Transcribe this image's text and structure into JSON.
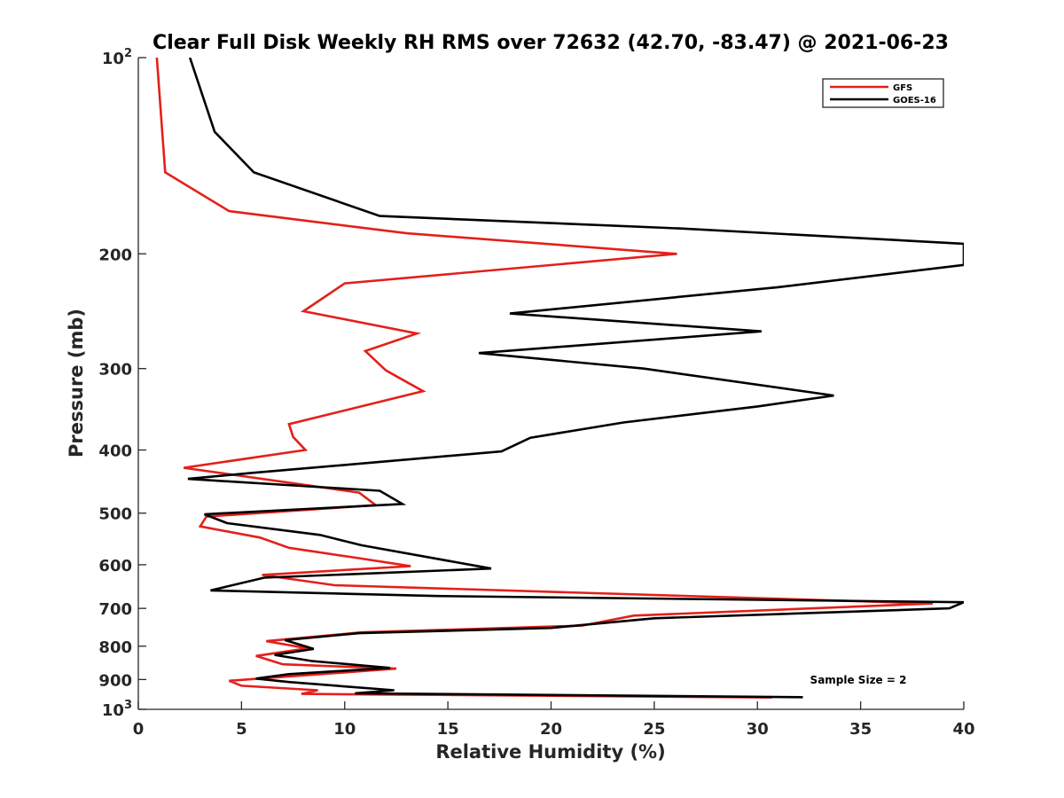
{
  "chart_data": {
    "type": "line",
    "title": "Clear Full Disk Weekly RH RMS over 72632 (42.70, -83.47) @ 2021-06-23",
    "xlabel": "Relative Humidity (%)",
    "ylabel": "Pressure (mb)",
    "xlim": [
      0,
      40
    ],
    "ylim": [
      100,
      1000
    ],
    "y_scale": "log",
    "y_reversed": true,
    "x_ticks": [
      0,
      5,
      10,
      15,
      20,
      25,
      30,
      35,
      40
    ],
    "y_ticks": [
      {
        "value": 100,
        "label": "10",
        "sup": "2"
      },
      {
        "value": 200,
        "label": "200",
        "sup": ""
      },
      {
        "value": 300,
        "label": "300",
        "sup": ""
      },
      {
        "value": 400,
        "label": "400",
        "sup": ""
      },
      {
        "value": 500,
        "label": "500",
        "sup": ""
      },
      {
        "value": 600,
        "label": "600",
        "sup": ""
      },
      {
        "value": 700,
        "label": "700",
        "sup": ""
      },
      {
        "value": 800,
        "label": "800",
        "sup": ""
      },
      {
        "value": 900,
        "label": "900",
        "sup": ""
      },
      {
        "value": 1000,
        "label": "10",
        "sup": "3"
      }
    ],
    "grid": false,
    "legend_position": "top-right",
    "annotation": "Sample Size = 2",
    "series": [
      {
        "name": "GFS",
        "color": "#e3201b",
        "points": [
          [
            0.9,
            100
          ],
          [
            1.3,
            150
          ],
          [
            4.4,
            172
          ],
          [
            13.0,
            186
          ],
          [
            26.1,
            200
          ],
          [
            10.0,
            222
          ],
          [
            8.0,
            245
          ],
          [
            13.5,
            265
          ],
          [
            11.0,
            282
          ],
          [
            12.0,
            302
          ],
          [
            13.8,
            325
          ],
          [
            7.3,
            365
          ],
          [
            7.5,
            382
          ],
          [
            8.1,
            400
          ],
          [
            2.2,
            426
          ],
          [
            10.7,
            465
          ],
          [
            11.5,
            486
          ],
          [
            3.3,
            506
          ],
          [
            3.0,
            524
          ],
          [
            5.9,
            545
          ],
          [
            7.3,
            565
          ],
          [
            10.5,
            585
          ],
          [
            13.2,
            603
          ],
          [
            6.0,
            622
          ],
          [
            9.5,
            645
          ],
          [
            38.5,
            688
          ],
          [
            24.0,
            718
          ],
          [
            21.5,
            744
          ],
          [
            10.8,
            762
          ],
          [
            6.2,
            786
          ],
          [
            8.2,
            806
          ],
          [
            5.7,
            828
          ],
          [
            7.0,
            853
          ],
          [
            12.5,
            866
          ],
          [
            4.4,
            904
          ],
          [
            5.0,
            920
          ],
          [
            8.7,
            935
          ],
          [
            7.9,
            947
          ],
          [
            30.7,
            959
          ]
        ]
      },
      {
        "name": "GOES-16",
        "color": "#000000",
        "points": [
          [
            2.5,
            100
          ],
          [
            3.7,
            130
          ],
          [
            5.6,
            150
          ],
          [
            11.7,
            175
          ],
          [
            26.5,
            183
          ],
          [
            40.0,
            193
          ],
          [
            40.0,
            208
          ],
          [
            31.0,
            225
          ],
          [
            18.0,
            247
          ],
          [
            30.2,
            263
          ],
          [
            16.5,
            284
          ],
          [
            24.5,
            300
          ],
          [
            33.7,
            330
          ],
          [
            30.0,
            343
          ],
          [
            23.5,
            363
          ],
          [
            19.0,
            383
          ],
          [
            17.6,
            402
          ],
          [
            5.4,
            434
          ],
          [
            2.4,
            443
          ],
          [
            11.7,
            462
          ],
          [
            12.8,
            484
          ],
          [
            3.2,
            502
          ],
          [
            4.3,
            518
          ],
          [
            8.8,
            540
          ],
          [
            10.8,
            560
          ],
          [
            17.1,
            608
          ],
          [
            6.1,
            628
          ],
          [
            3.5,
            657
          ],
          [
            14.5,
            670
          ],
          [
            40.0,
            685
          ],
          [
            39.3,
            700
          ],
          [
            25.0,
            725
          ],
          [
            20.0,
            750
          ],
          [
            10.7,
            764
          ],
          [
            7.1,
            783
          ],
          [
            8.5,
            808
          ],
          [
            6.6,
            825
          ],
          [
            8.4,
            843
          ],
          [
            12.2,
            864
          ],
          [
            7.3,
            883
          ],
          [
            5.7,
            897
          ],
          [
            7.3,
            908
          ],
          [
            12.4,
            935
          ],
          [
            10.5,
            945
          ],
          [
            32.2,
            958
          ]
        ]
      }
    ]
  }
}
